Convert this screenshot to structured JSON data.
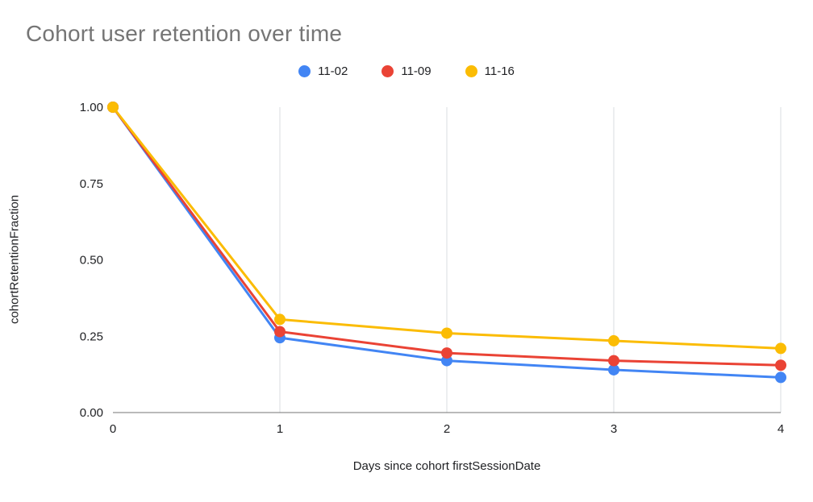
{
  "colors": {
    "background": "#ffffff",
    "title_text": "#757575",
    "axis_text": "#202124",
    "gridline": "#dadce0",
    "baseline": "#757575"
  },
  "chart_data": {
    "type": "line",
    "title": "Cohort user retention over time",
    "xlabel": "Days since cohort firstSessionDate",
    "ylabel": "cohortRetentionFraction",
    "x": [
      0,
      1,
      2,
      3,
      4
    ],
    "x_ticks": [
      "0",
      "1",
      "2",
      "3",
      "4"
    ],
    "y_tick_values": [
      0,
      0.25,
      0.5,
      0.75,
      1
    ],
    "y_ticks": [
      "0.00",
      "0.25",
      "0.50",
      "0.75",
      "1.00"
    ],
    "xlim": [
      0,
      4
    ],
    "ylim": [
      0,
      1
    ],
    "grid": "vertical",
    "legend_position": "top",
    "series": [
      {
        "name": "11-02",
        "color": "#4285F4",
        "values": [
          1.0,
          0.245,
          0.17,
          0.14,
          0.115
        ]
      },
      {
        "name": "11-09",
        "color": "#EA4335",
        "values": [
          1.0,
          0.265,
          0.195,
          0.17,
          0.155
        ]
      },
      {
        "name": "11-16",
        "color": "#FBBC04",
        "values": [
          1.0,
          0.305,
          0.26,
          0.235,
          0.21
        ]
      }
    ]
  }
}
